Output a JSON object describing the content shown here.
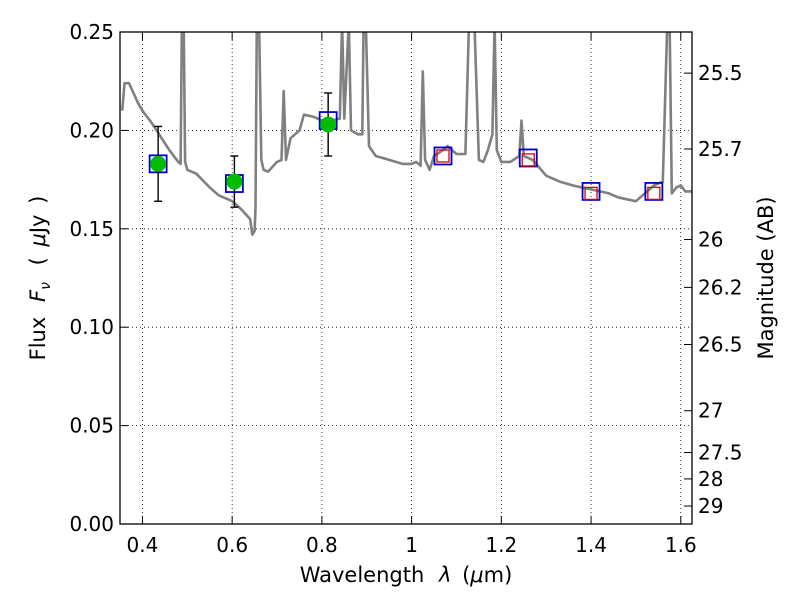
{
  "chart_data": {
    "type": "scatter",
    "xlabel": "Wavelength  λ (μm)",
    "ylabel": "Flux  F_ν  ( μJy )",
    "ylabel_parts": {
      "flux": "Flux",
      "f": "F",
      "nu": "ν",
      "open": "(",
      "mu": "μ",
      "unit": "Jy",
      "close": ")"
    },
    "xlabel_parts": {
      "text": "Wavelength",
      "lambda": "λ",
      "open": "(",
      "mu": "μ",
      "unit": "m)"
    },
    "y2label": "Magnitude (AB)",
    "xlim": [
      0.35,
      1.625
    ],
    "ylim": [
      0.0,
      0.25
    ],
    "grid": true,
    "x_ticks": [
      {
        "v": 0.4,
        "label": "0.4"
      },
      {
        "v": 0.6,
        "label": "0.6"
      },
      {
        "v": 0.8,
        "label": "0.8"
      },
      {
        "v": 1.0,
        "label": "1"
      },
      {
        "v": 1.2,
        "label": "1.2"
      },
      {
        "v": 1.4,
        "label": "1.4"
      },
      {
        "v": 1.6,
        "label": "1.6"
      }
    ],
    "y_ticks": [
      {
        "v": 0.0,
        "label": "0.00"
      },
      {
        "v": 0.05,
        "label": "0.05"
      },
      {
        "v": 0.1,
        "label": "0.10"
      },
      {
        "v": 0.15,
        "label": "0.15"
      },
      {
        "v": 0.2,
        "label": "0.20"
      },
      {
        "v": 0.25,
        "label": "0.25"
      }
    ],
    "y2_ticks": [
      {
        "mag": 25.5,
        "label": "25.5"
      },
      {
        "mag": 25.7,
        "label": "25.7"
      },
      {
        "mag": 26.0,
        "label": "26"
      },
      {
        "mag": 26.2,
        "label": "26.2"
      },
      {
        "mag": 26.5,
        "label": "26.5"
      },
      {
        "mag": 27.0,
        "label": "27"
      },
      {
        "mag": 27.5,
        "label": "27.5"
      },
      {
        "mag": 28.0,
        "label": "28"
      },
      {
        "mag": 29.0,
        "label": "29"
      }
    ],
    "series": [
      {
        "kind": "model-spectrum",
        "color": "#808080",
        "points": [
          [
            0.355,
            0.21
          ],
          [
            0.36,
            0.224
          ],
          [
            0.37,
            0.224
          ],
          [
            0.38,
            0.219
          ],
          [
            0.39,
            0.214
          ],
          [
            0.4,
            0.21
          ],
          [
            0.42,
            0.204
          ],
          [
            0.44,
            0.197
          ],
          [
            0.46,
            0.19
          ],
          [
            0.48,
            0.184
          ],
          [
            0.485,
            0.183
          ],
          [
            0.488,
            0.255
          ],
          [
            0.492,
            0.255
          ],
          [
            0.495,
            0.184
          ],
          [
            0.5,
            0.18
          ],
          [
            0.52,
            0.178
          ],
          [
            0.55,
            0.171
          ],
          [
            0.57,
            0.167
          ],
          [
            0.6,
            0.164
          ],
          [
            0.62,
            0.16
          ],
          [
            0.64,
            0.155
          ],
          [
            0.645,
            0.147
          ],
          [
            0.65,
            0.149
          ],
          [
            0.652,
            0.16
          ],
          [
            0.655,
            0.255
          ],
          [
            0.66,
            0.255
          ],
          [
            0.665,
            0.185
          ],
          [
            0.67,
            0.18
          ],
          [
            0.68,
            0.179
          ],
          [
            0.7,
            0.184
          ],
          [
            0.71,
            0.185
          ],
          [
            0.715,
            0.22
          ],
          [
            0.72,
            0.185
          ],
          [
            0.73,
            0.196
          ],
          [
            0.75,
            0.2
          ],
          [
            0.76,
            0.208
          ],
          [
            0.78,
            0.207
          ],
          [
            0.8,
            0.205
          ],
          [
            0.82,
            0.205
          ],
          [
            0.84,
            0.206
          ],
          [
            0.845,
            0.255
          ],
          [
            0.85,
            0.206
          ],
          [
            0.86,
            0.255
          ],
          [
            0.865,
            0.2
          ],
          [
            0.88,
            0.198
          ],
          [
            0.89,
            0.198
          ],
          [
            0.893,
            0.255
          ],
          [
            0.898,
            0.255
          ],
          [
            0.905,
            0.192
          ],
          [
            0.92,
            0.187
          ],
          [
            0.95,
            0.185
          ],
          [
            0.98,
            0.183
          ],
          [
            1.0,
            0.183
          ],
          [
            1.01,
            0.184
          ],
          [
            1.02,
            0.182
          ],
          [
            1.025,
            0.23
          ],
          [
            1.03,
            0.185
          ],
          [
            1.04,
            0.18
          ],
          [
            1.05,
            0.187
          ],
          [
            1.07,
            0.19
          ],
          [
            1.08,
            0.192
          ],
          [
            1.09,
            0.19
          ],
          [
            1.1,
            0.188
          ],
          [
            1.12,
            0.188
          ],
          [
            1.128,
            0.255
          ],
          [
            1.14,
            0.255
          ],
          [
            1.15,
            0.185
          ],
          [
            1.16,
            0.184
          ],
          [
            1.17,
            0.19
          ],
          [
            1.18,
            0.198
          ],
          [
            1.185,
            0.255
          ],
          [
            1.19,
            0.19
          ],
          [
            1.2,
            0.184
          ],
          [
            1.22,
            0.184
          ],
          [
            1.24,
            0.187
          ],
          [
            1.245,
            0.205
          ],
          [
            1.25,
            0.187
          ],
          [
            1.27,
            0.185
          ],
          [
            1.3,
            0.177
          ],
          [
            1.33,
            0.174
          ],
          [
            1.36,
            0.172
          ],
          [
            1.38,
            0.171
          ],
          [
            1.4,
            0.17
          ],
          [
            1.42,
            0.169
          ],
          [
            1.44,
            0.168
          ],
          [
            1.46,
            0.166
          ],
          [
            1.48,
            0.165
          ],
          [
            1.5,
            0.164
          ],
          [
            1.52,
            0.168
          ],
          [
            1.54,
            0.172
          ],
          [
            1.56,
            0.174
          ],
          [
            1.57,
            0.255
          ],
          [
            1.575,
            0.255
          ],
          [
            1.58,
            0.168
          ],
          [
            1.59,
            0.171
          ],
          [
            1.6,
            0.172
          ],
          [
            1.61,
            0.169
          ],
          [
            1.625,
            0.169
          ]
        ]
      },
      {
        "kind": "observed-detections",
        "color": "#00bb00",
        "points": [
          {
            "x": 0.435,
            "y": 0.183,
            "err": 0.019
          },
          {
            "x": 0.605,
            "y": 0.174,
            "err": 0.013
          },
          {
            "x": 0.814,
            "y": 0.203,
            "err": 0.016
          }
        ]
      },
      {
        "kind": "model-synthetic-photometry",
        "color": "#0000cc",
        "points": [
          {
            "x": 0.435,
            "y": 0.183
          },
          {
            "x": 0.605,
            "y": 0.173
          },
          {
            "x": 0.814,
            "y": 0.205
          },
          {
            "x": 1.07,
            "y": 0.187
          },
          {
            "x": 1.26,
            "y": 0.186
          },
          {
            "x": 1.4,
            "y": 0.169
          },
          {
            "x": 1.54,
            "y": 0.169
          }
        ]
      },
      {
        "kind": "upper-limits",
        "color": "#dd0000",
        "points": [
          {
            "x": 1.07,
            "y": 0.187
          },
          {
            "x": 1.26,
            "y": 0.185
          },
          {
            "x": 1.4,
            "y": 0.168
          },
          {
            "x": 1.54,
            "y": 0.168
          }
        ]
      }
    ]
  }
}
